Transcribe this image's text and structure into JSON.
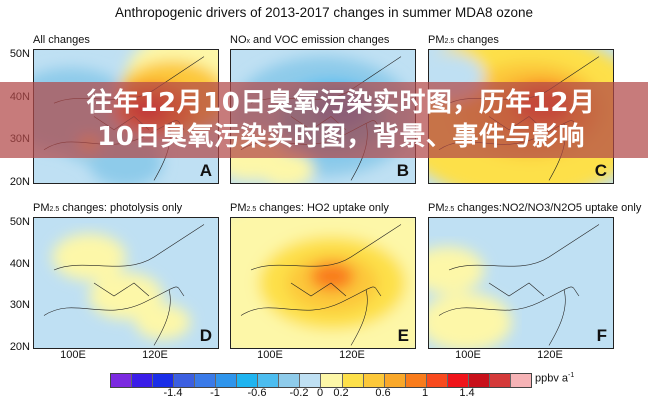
{
  "figure_title": "Anthropogenic drivers of 2013-2017 changes in summer MDA8 ozone",
  "panels": [
    {
      "title_main": "All changes",
      "title_sub": "",
      "title_rest": "",
      "letter": "A"
    },
    {
      "title_main": "NO",
      "title_sub": "x",
      "title_rest": " and VOC emission changes",
      "letter": "B"
    },
    {
      "title_main": "PM",
      "title_sub": "2.5",
      "title_rest": " changes",
      "letter": "C"
    },
    {
      "title_main": "PM",
      "title_sub": "2.5",
      "title_rest": " changes: photolysis only",
      "letter": "D"
    },
    {
      "title_main": "PM",
      "title_sub": "2.5",
      "title_rest": " changes: HO2 uptake only",
      "letter": "E"
    },
    {
      "title_main": "PM",
      "title_sub": "2.5",
      "title_rest": " changes:NO2/NO3/N2O5 uptake only",
      "letter": "F"
    }
  ],
  "lat_labels": [
    "50N",
    "40N",
    "30N",
    "20N"
  ],
  "lon_labels": [
    "100E",
    "120E"
  ],
  "colorbar": {
    "ticks": [
      "-1.4",
      "-1",
      "-0.6",
      "-0.2",
      "0",
      "0.2",
      "0.6",
      "1",
      "1.4"
    ],
    "unit": "ppbv a",
    "unit_sup": "-1",
    "range": [
      -2,
      2
    ],
    "step": 0.2,
    "colors": [
      "#7b2ae0",
      "#3a1de8",
      "#1a2ee8",
      "#3c5fe0",
      "#3a7ae8",
      "#2f95ec",
      "#1fb4f0",
      "#4cbdf0",
      "#8ecbea",
      "#bfe0f3",
      "#fdf7a8",
      "#fde04a",
      "#fcc83a",
      "#f9a82a",
      "#f97c1c",
      "#f84a1e",
      "#f0141a",
      "#c8101a",
      "#d43a3a",
      "#f6b3b6"
    ]
  },
  "banner": {
    "line1": "往年12月10日臭氧污染实时图，历年12月",
    "line2": "10日臭氧污染实时图，背景、事件与影响"
  }
}
